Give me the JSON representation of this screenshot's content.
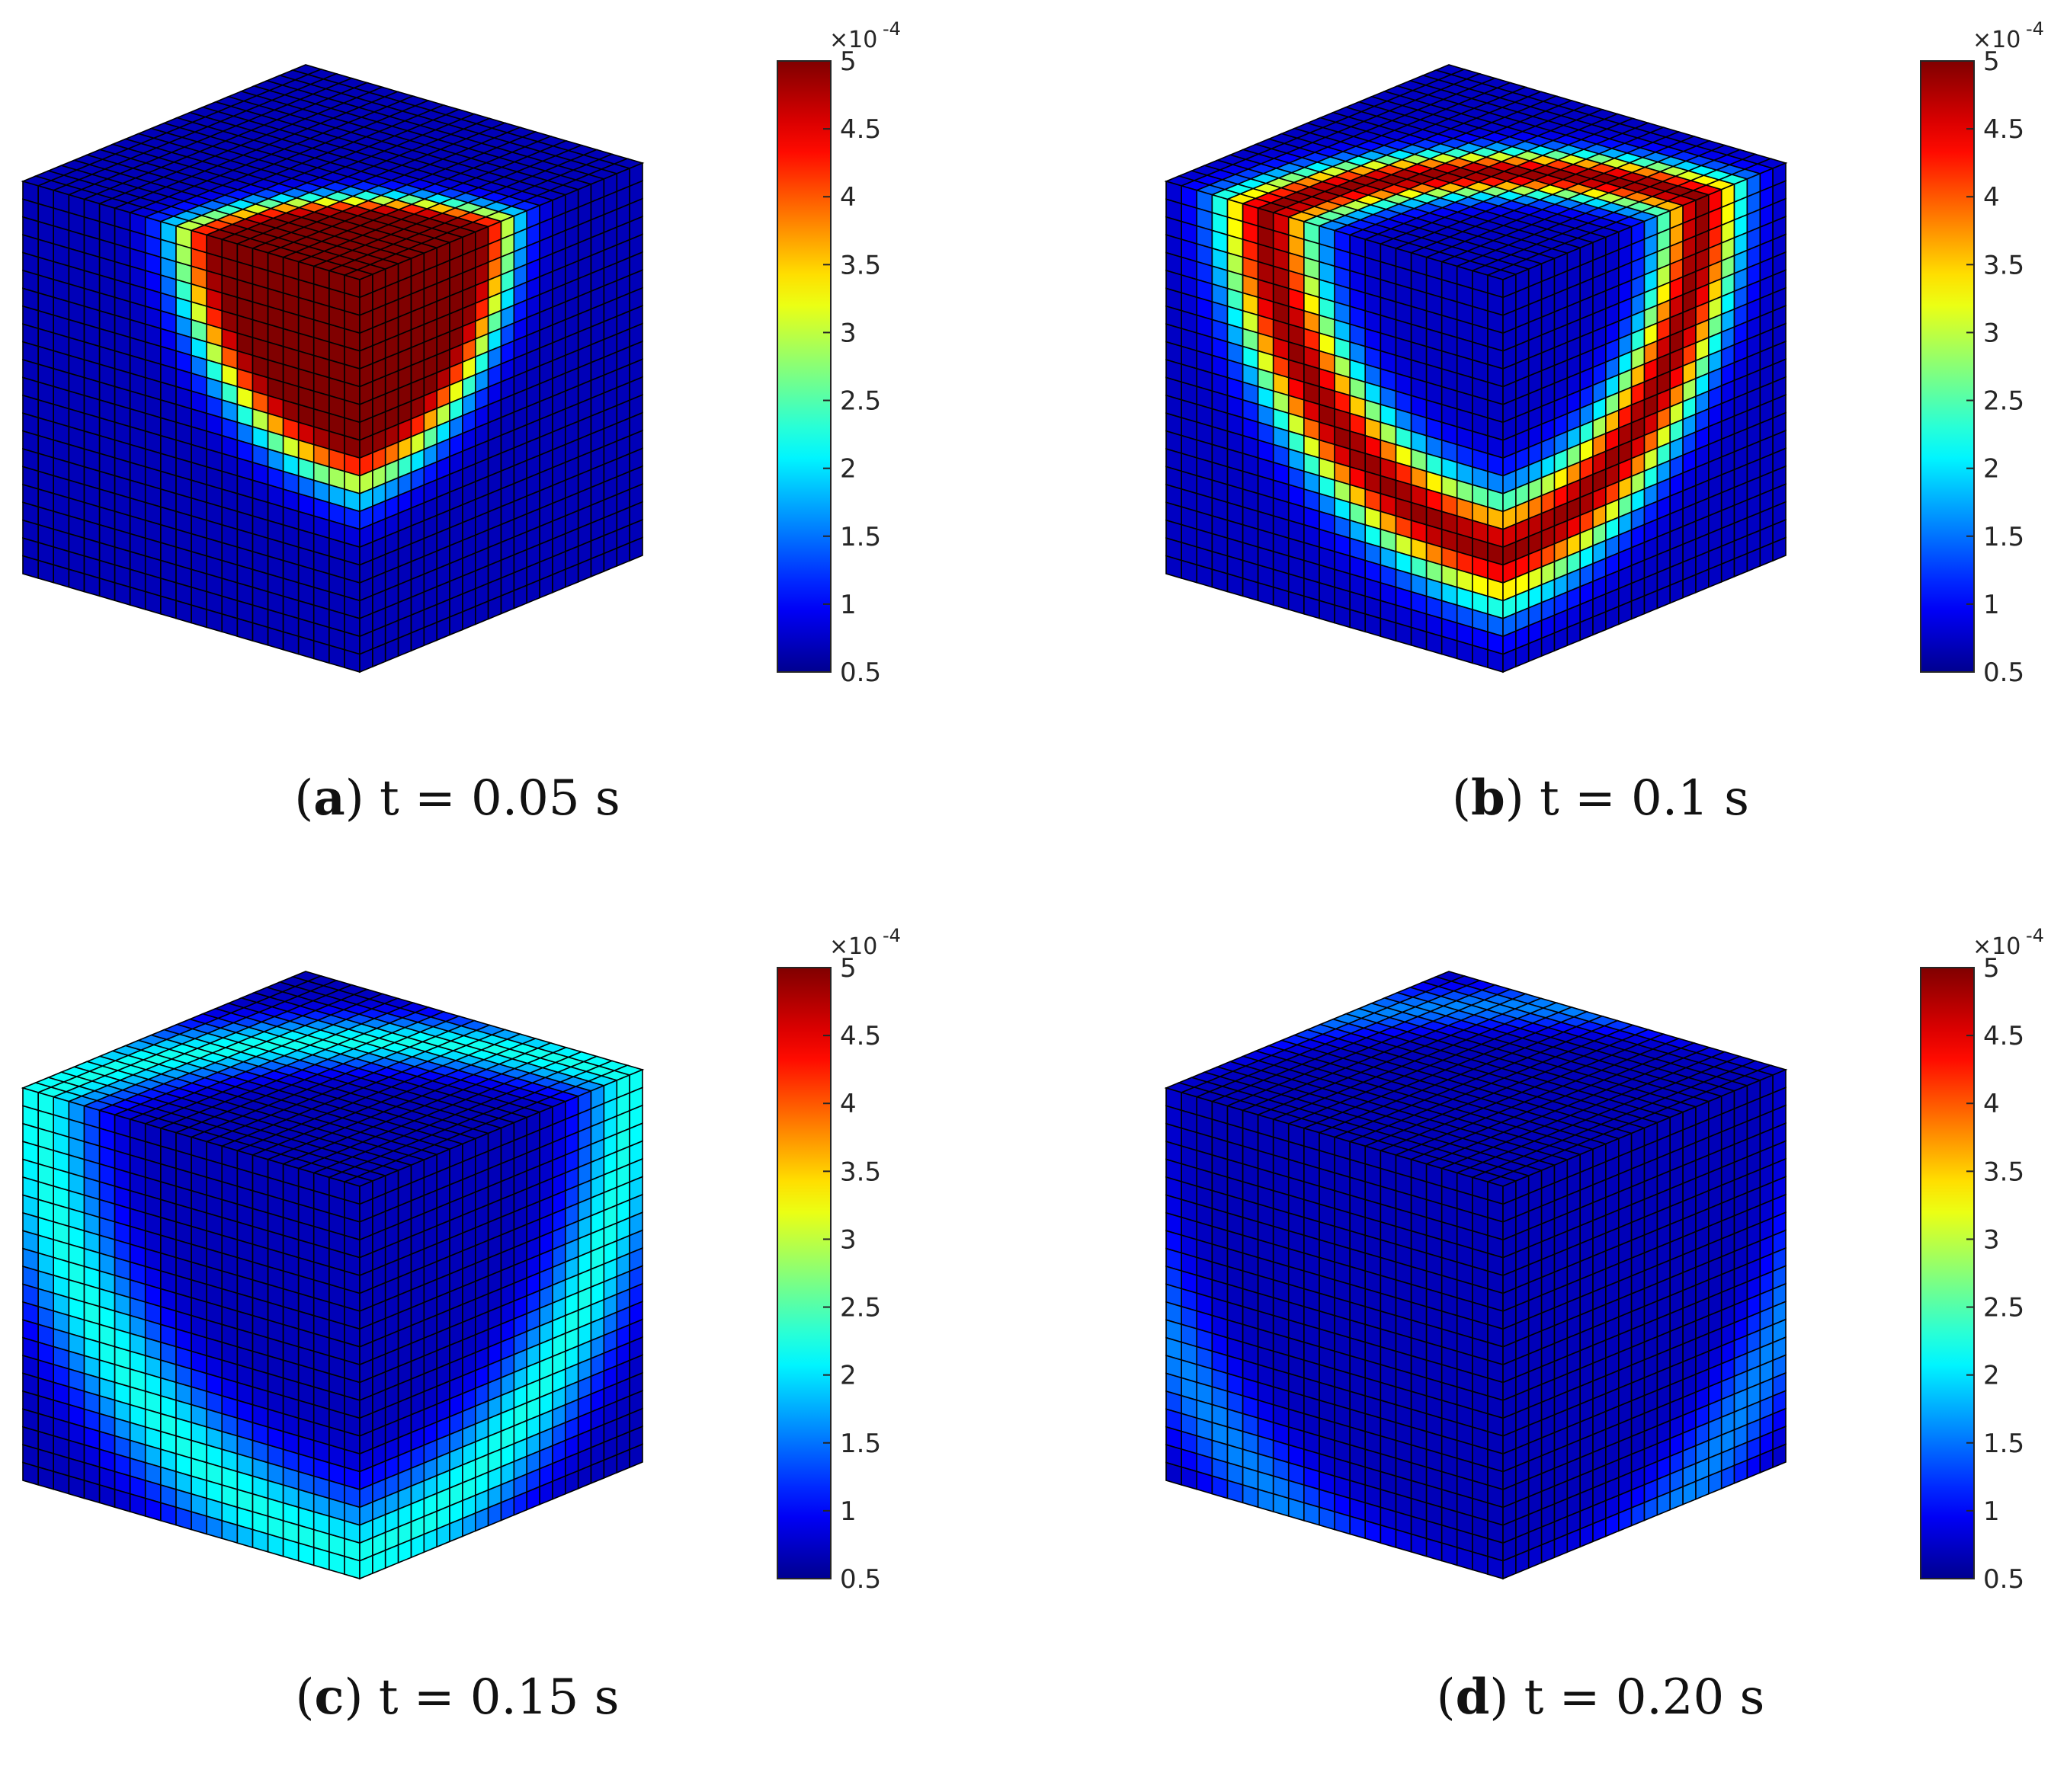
{
  "colorbar": {
    "multiplier": "×10",
    "exponent": "-4",
    "ticks": [
      "0.5",
      "1",
      "1.5",
      "2",
      "2.5",
      "3",
      "3.5",
      "4",
      "4.5",
      "5"
    ]
  },
  "panels": [
    {
      "letter": "a",
      "caption": "t = 0.05 s"
    },
    {
      "letter": "b",
      "caption": "t = 0.1 s"
    },
    {
      "letter": "c",
      "caption": "t = 0.15 s"
    },
    {
      "letter": "d",
      "caption": "t = 0.20 s"
    }
  ],
  "colors": {
    "jet": [
      "#00008f",
      "#0000ff",
      "#00ffff",
      "#ffff00",
      "#ff0000",
      "#800000"
    ],
    "mesh_line": "#000000"
  }
}
